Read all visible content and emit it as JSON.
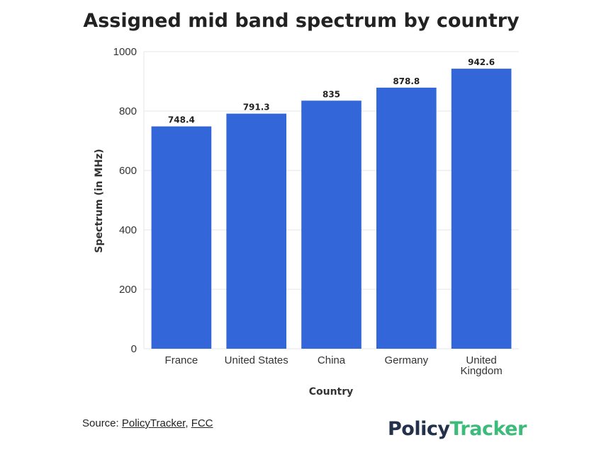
{
  "title": "Assigned mid band spectrum by country",
  "chart_data": {
    "type": "bar",
    "title": "Assigned mid band spectrum by country",
    "xlabel": "Country",
    "ylabel": "Spectrum (in MHz)",
    "categories": [
      [
        "France"
      ],
      [
        "United States"
      ],
      [
        "China"
      ],
      [
        "Germany"
      ],
      [
        "United",
        "Kingdom"
      ]
    ],
    "values": [
      748.4,
      791.3,
      835,
      878.8,
      942.6
    ],
    "value_labels": [
      "748.4",
      "791.3",
      "835",
      "878.8",
      "942.6"
    ],
    "ylim": [
      0,
      1000
    ],
    "yticks": [
      0,
      200,
      400,
      600,
      800,
      1000
    ],
    "grid": true,
    "bar_color": "#3366d9"
  },
  "source": {
    "prefix": "Source:",
    "links": [
      "PolicyTracker",
      "FCC"
    ],
    "separator": ","
  },
  "logo": {
    "part1": "Policy",
    "part2": "Tracker"
  }
}
